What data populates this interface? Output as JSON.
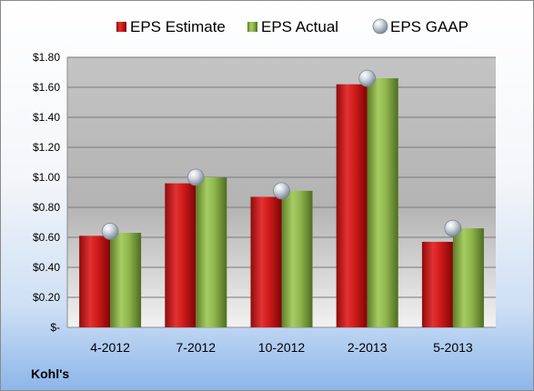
{
  "chart_data": {
    "type": "bar",
    "categories": [
      "4-2012",
      "7-2012",
      "10-2012",
      "2-2013",
      "5-2013"
    ],
    "series": [
      {
        "name": "EPS Estimate",
        "values": [
          0.61,
          0.96,
          0.87,
          1.62,
          0.57
        ],
        "color": "#d42020"
      },
      {
        "name": "EPS Actual",
        "values": [
          0.63,
          1.0,
          0.91,
          1.66,
          0.66
        ],
        "color": "#8fb64e"
      },
      {
        "name": "EPS GAAP",
        "values": [
          0.64,
          1.0,
          0.91,
          1.66,
          0.66
        ],
        "color": "#b8c2cc",
        "marker": "sphere"
      }
    ],
    "y_ticks": [
      "$-",
      "$0.20",
      "$0.40",
      "$0.60",
      "$0.80",
      "$1.00",
      "$1.20",
      "$1.40",
      "$1.60",
      "$1.80"
    ],
    "ylim": [
      0,
      1.8
    ],
    "ystep": 0.2,
    "grid": true,
    "legend_position": "top",
    "footer_label": "Kohl's"
  }
}
